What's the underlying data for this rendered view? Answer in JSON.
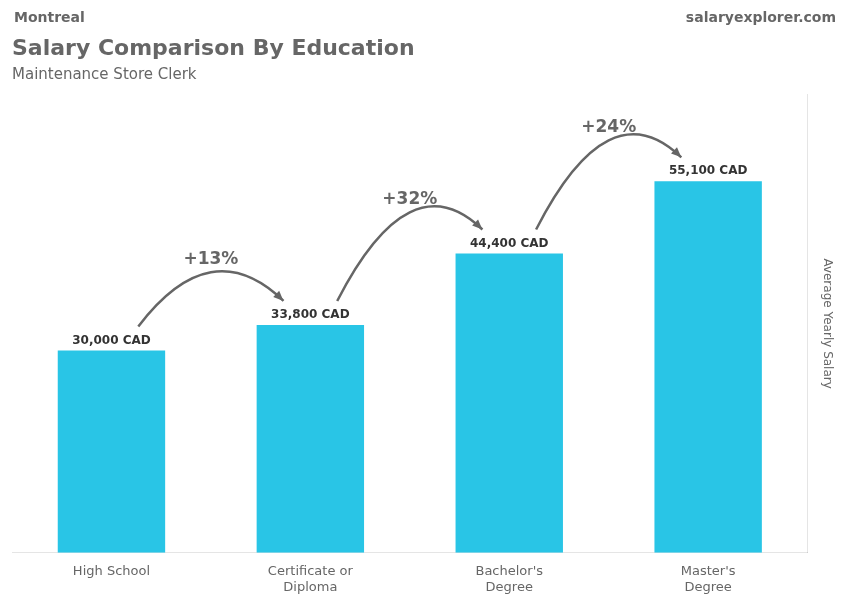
{
  "chart_data": {
    "type": "bar",
    "title": "Salary Comparison By Education",
    "subtitle": "Maintenance Store Clerk",
    "ylabel": "Average Yearly Salary",
    "categories": [
      "High School",
      "Certificate or\nDiploma",
      "Bachelor's\nDegree",
      "Master's\nDegree"
    ],
    "values": [
      30000,
      33800,
      44400,
      55100
    ],
    "value_labels": [
      "30,000 CAD",
      "33,800 CAD",
      "44,400 CAD",
      "55,100 CAD"
    ],
    "data_labels": true,
    "color": "#29c5e6",
    "ylim": [
      0,
      68000
    ],
    "grid": false,
    "tick_labels": "x",
    "annotations": [
      {
        "text": "Montreal"
      },
      {
        "text": "salaryexplorer.com"
      },
      {
        "text": "+13%",
        "from": "High School",
        "to": "Certificate or\nDiploma"
      },
      {
        "text": "+32%",
        "from": "Certificate or\nDiploma",
        "to": "Bachelor's\nDegree"
      },
      {
        "text": "+24%",
        "from": "Bachelor's\nDegree",
        "to": "Master's\nDegree"
      }
    ]
  }
}
